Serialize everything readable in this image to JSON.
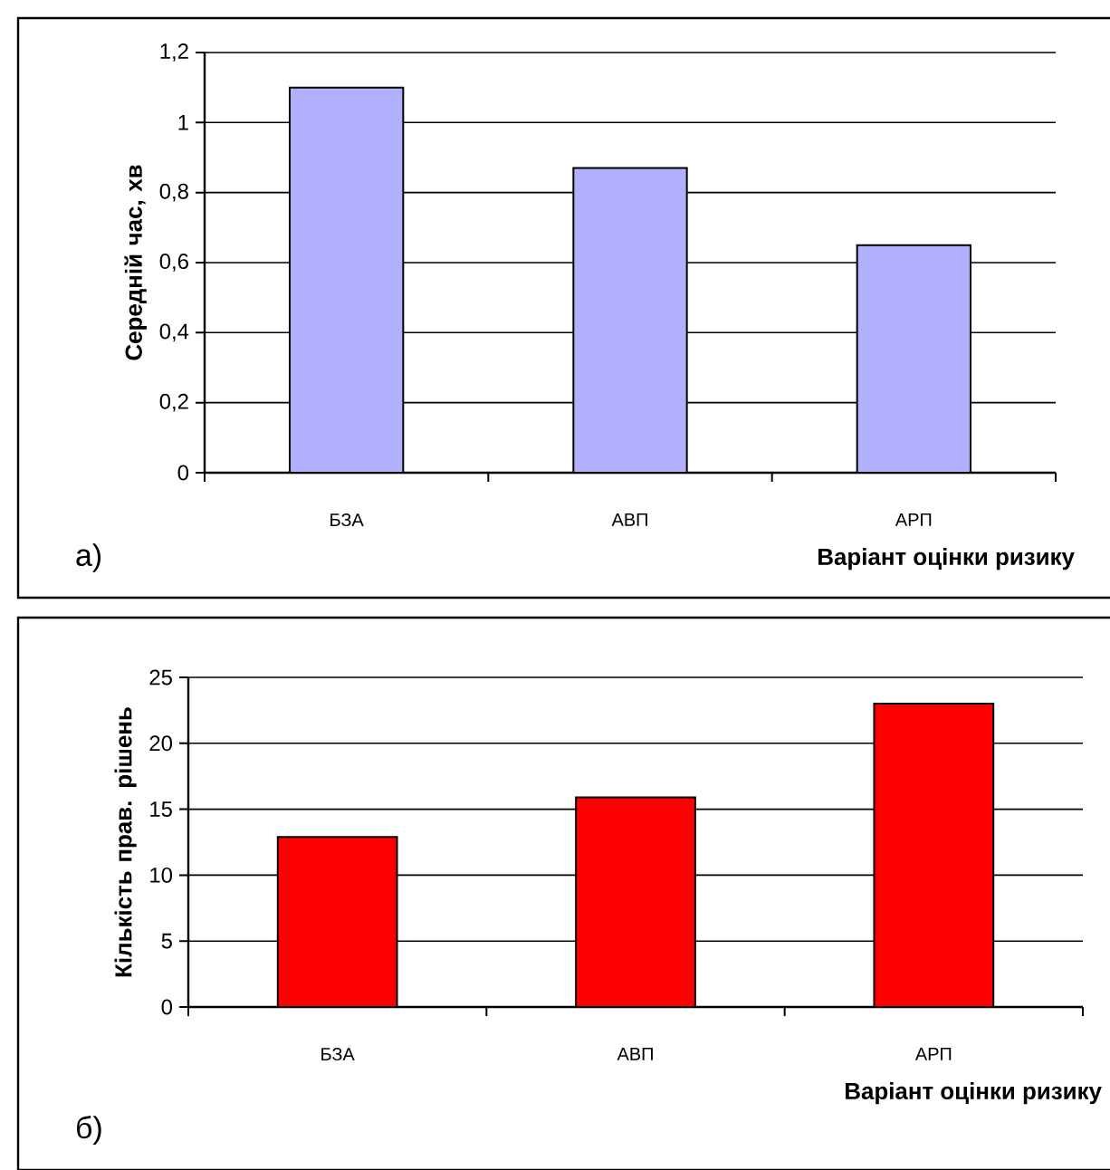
{
  "chart_data": [
    {
      "type": "bar",
      "categories": [
        "БЗА",
        "АВП",
        "АРП"
      ],
      "values": [
        1.1,
        0.87,
        0.65
      ],
      "color": "#b0b0ff",
      "ylabel": "Середній час, хв",
      "xlabel": "Варіант оцінки ризику",
      "ylim": [
        0,
        1.2
      ],
      "yticks": [
        0,
        {
          "value": 0.2,
          "label": "0,2"
        },
        {
          "value": 0.4,
          "label": "0,4"
        },
        {
          "value": 0.6,
          "label": "0,6"
        },
        {
          "value": 0.8,
          "label": "0,8"
        },
        1,
        {
          "value": 1.2,
          "label": "1,2"
        }
      ],
      "grid": "y",
      "annotations": [
        "а)"
      ]
    },
    {
      "type": "bar",
      "categories": [
        "БЗА",
        "АВП",
        "АРП"
      ],
      "values": [
        12.9,
        15.9,
        23
      ],
      "color": "#ff0000",
      "ylabel": "Кількість прав. рішень",
      "xlabel": "Варіант оцінки ризику",
      "ylim": [
        0,
        25
      ],
      "yticks": [
        0,
        5,
        10,
        15,
        20,
        25
      ],
      "grid": "y",
      "annotations": [
        "б)"
      ]
    }
  ]
}
